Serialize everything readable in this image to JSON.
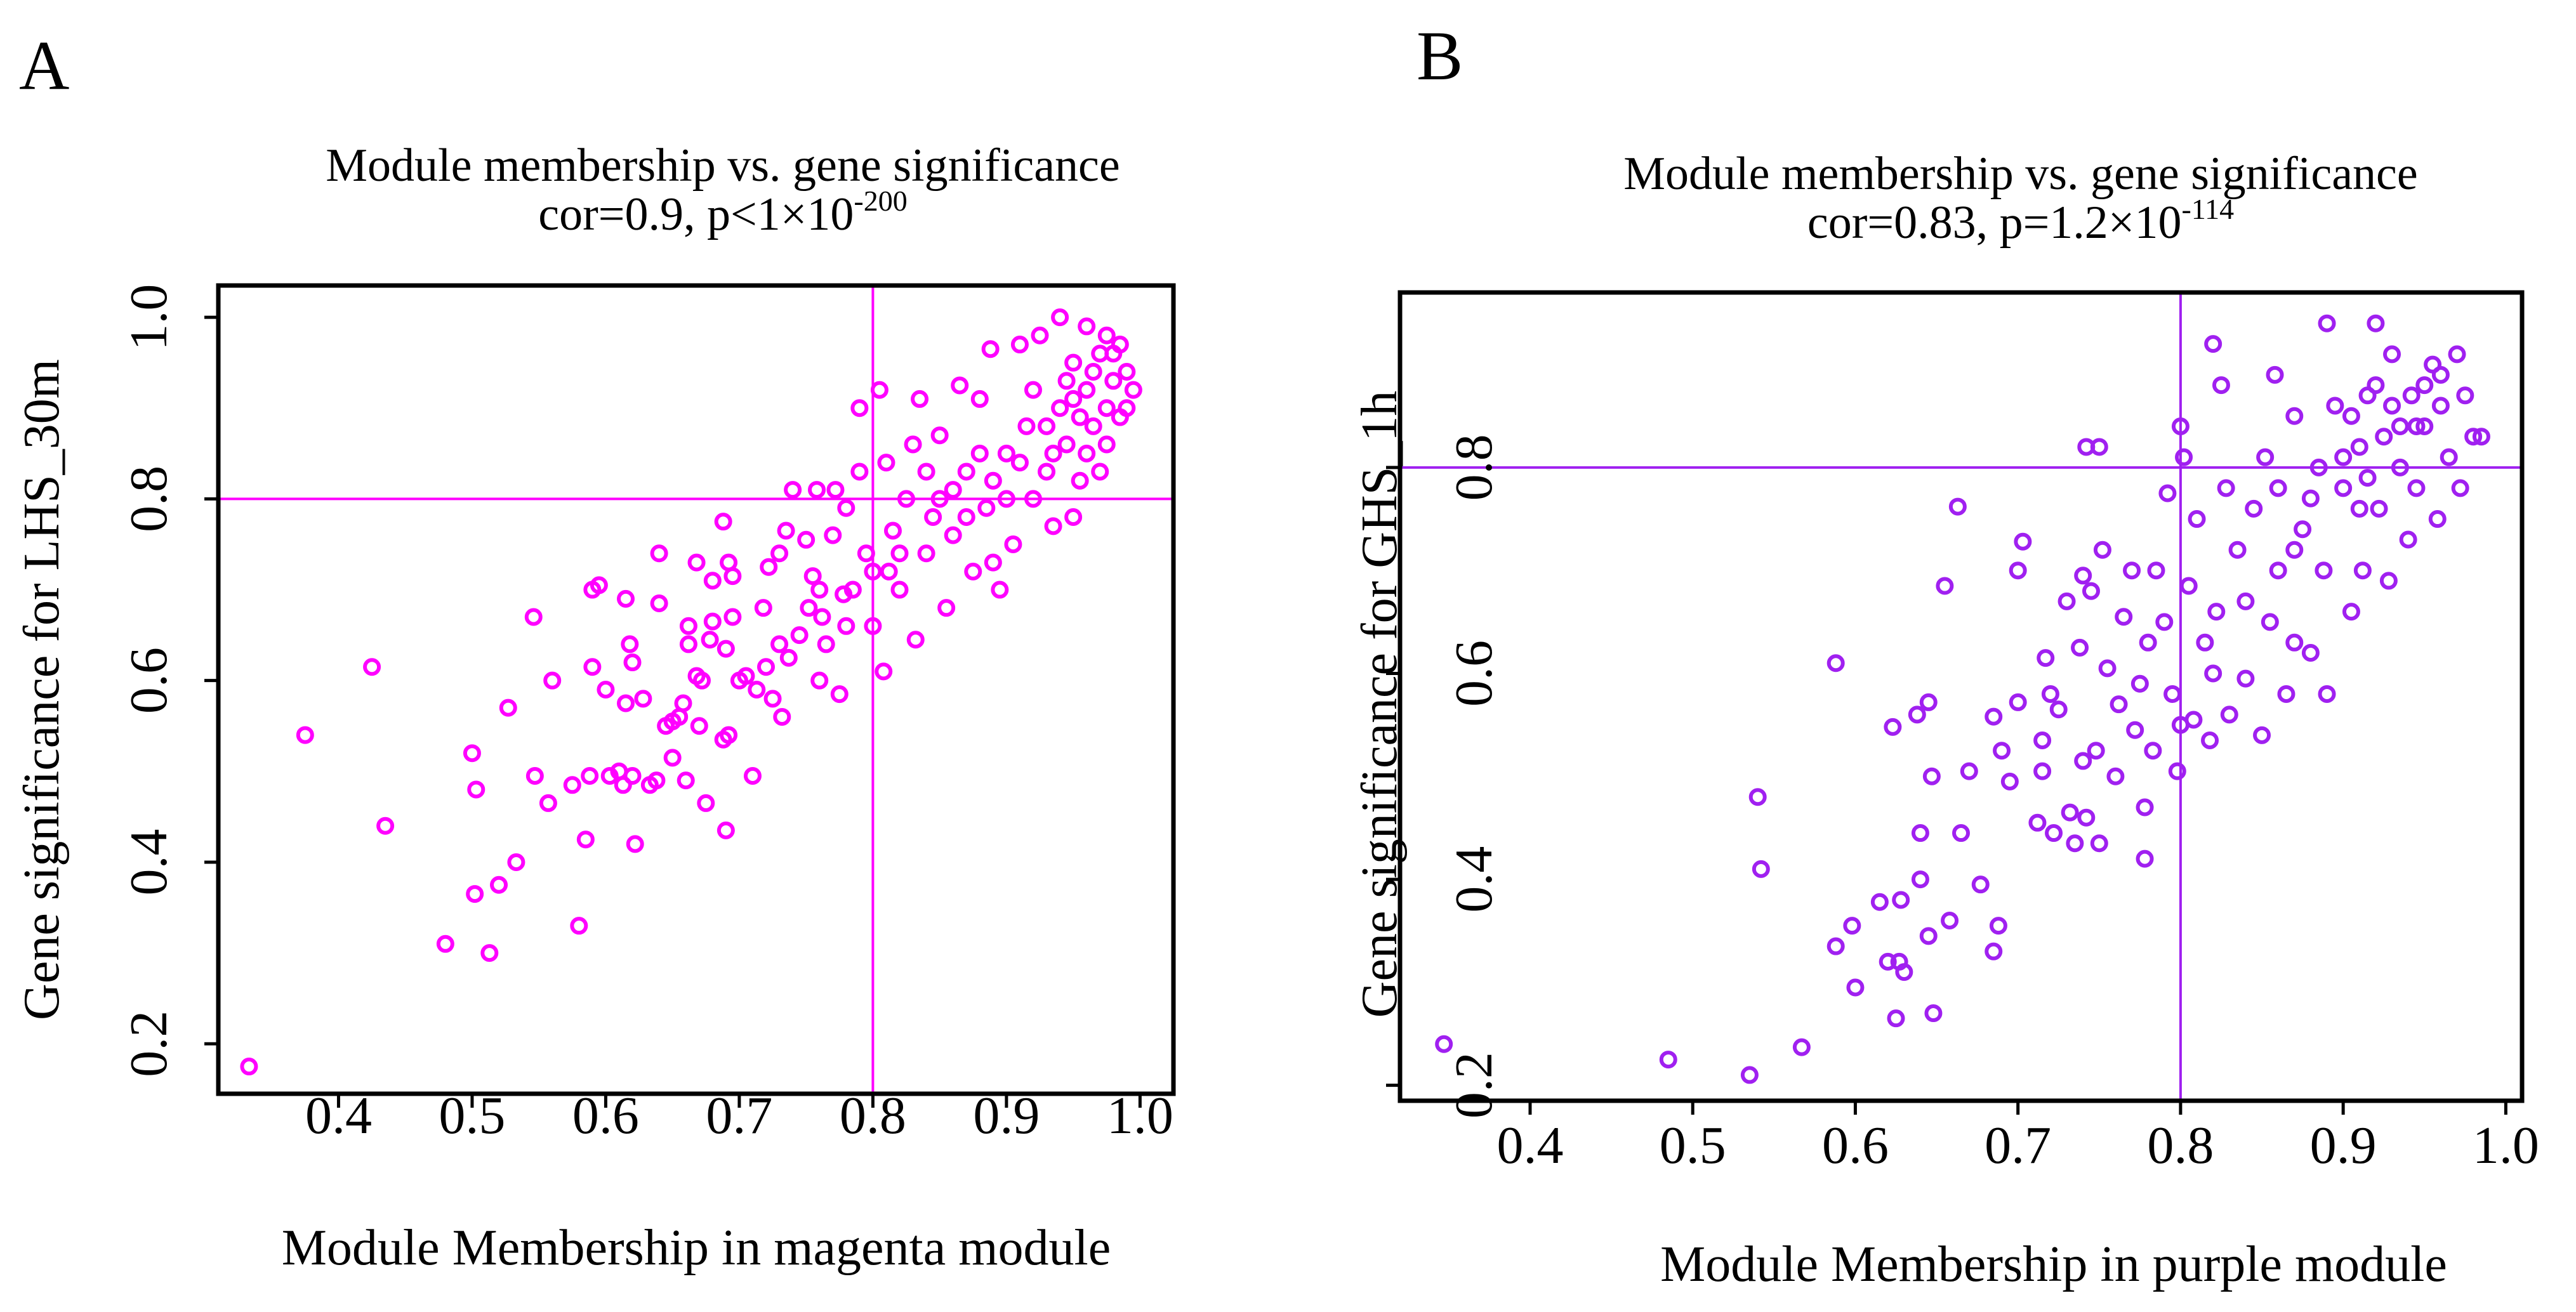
{
  "chart_data": [
    {
      "type": "scatter",
      "panel_label": "A",
      "title": "Module membership vs. gene significance",
      "subtitle": {
        "prefix": "cor=0.9, p<1×10",
        "exponent": "-200"
      },
      "xlabel": "Module Membership in magenta module",
      "ylabel": "Gene significance for LHS_30m",
      "xlim": [
        0.31,
        1.025
      ],
      "ylim": [
        0.145,
        1.035
      ],
      "xticks": [
        "0.4",
        "0.5",
        "0.6",
        "0.7",
        "0.8",
        "0.9",
        "1.0"
      ],
      "yticks": [
        "0.2",
        "0.4",
        "0.6",
        "0.8",
        "1.0"
      ],
      "reference_lines": {
        "x": 0.8,
        "y": 0.8
      },
      "marker": "open-circle",
      "color": "#FF00FF",
      "grid": false,
      "points": [
        [
          0.333,
          0.175
        ],
        [
          0.375,
          0.54
        ],
        [
          0.425,
          0.615
        ],
        [
          0.435,
          0.44
        ],
        [
          0.48,
          0.31
        ],
        [
          0.5,
          0.52
        ],
        [
          0.503,
          0.48
        ],
        [
          0.502,
          0.365
        ],
        [
          0.513,
          0.3
        ],
        [
          0.52,
          0.375
        ],
        [
          0.527,
          0.57
        ],
        [
          0.533,
          0.4
        ],
        [
          0.546,
          0.67
        ],
        [
          0.547,
          0.495
        ],
        [
          0.557,
          0.465
        ],
        [
          0.56,
          0.6
        ],
        [
          0.575,
          0.485
        ],
        [
          0.58,
          0.33
        ],
        [
          0.585,
          0.425
        ],
        [
          0.588,
          0.495
        ],
        [
          0.59,
          0.615
        ],
        [
          0.59,
          0.7
        ],
        [
          0.595,
          0.705
        ],
        [
          0.6,
          0.59
        ],
        [
          0.603,
          0.495
        ],
        [
          0.61,
          0.5
        ],
        [
          0.613,
          0.485
        ],
        [
          0.615,
          0.575
        ],
        [
          0.615,
          0.69
        ],
        [
          0.618,
          0.64
        ],
        [
          0.62,
          0.62
        ],
        [
          0.62,
          0.495
        ],
        [
          0.622,
          0.42
        ],
        [
          0.628,
          0.58
        ],
        [
          0.633,
          0.485
        ],
        [
          0.638,
          0.49
        ],
        [
          0.64,
          0.74
        ],
        [
          0.64,
          0.685
        ],
        [
          0.645,
          0.55
        ],
        [
          0.65,
          0.555
        ],
        [
          0.65,
          0.515
        ],
        [
          0.655,
          0.56
        ],
        [
          0.658,
          0.575
        ],
        [
          0.66,
          0.49
        ],
        [
          0.662,
          0.66
        ],
        [
          0.662,
          0.64
        ],
        [
          0.668,
          0.73
        ],
        [
          0.668,
          0.605
        ],
        [
          0.67,
          0.55
        ],
        [
          0.672,
          0.6
        ],
        [
          0.675,
          0.465
        ],
        [
          0.678,
          0.645
        ],
        [
          0.68,
          0.665
        ],
        [
          0.68,
          0.71
        ],
        [
          0.688,
          0.775
        ],
        [
          0.688,
          0.535
        ],
        [
          0.69,
          0.435
        ],
        [
          0.69,
          0.635
        ],
        [
          0.692,
          0.73
        ],
        [
          0.692,
          0.54
        ],
        [
          0.695,
          0.715
        ],
        [
          0.695,
          0.67
        ],
        [
          0.7,
          0.6
        ],
        [
          0.705,
          0.605
        ],
        [
          0.71,
          0.495
        ],
        [
          0.713,
          0.59
        ],
        [
          0.718,
          0.68
        ],
        [
          0.72,
          0.615
        ],
        [
          0.722,
          0.725
        ],
        [
          0.725,
          0.58
        ],
        [
          0.73,
          0.74
        ],
        [
          0.73,
          0.64
        ],
        [
          0.732,
          0.56
        ],
        [
          0.735,
          0.765
        ],
        [
          0.737,
          0.625
        ],
        [
          0.74,
          0.81
        ],
        [
          0.745,
          0.65
        ],
        [
          0.75,
          0.755
        ],
        [
          0.752,
          0.68
        ],
        [
          0.755,
          0.715
        ],
        [
          0.758,
          0.81
        ],
        [
          0.76,
          0.6
        ],
        [
          0.762,
          0.67
        ],
        [
          0.765,
          0.64
        ],
        [
          0.77,
          0.76
        ],
        [
          0.772,
          0.81
        ],
        [
          0.775,
          0.585
        ],
        [
          0.778,
          0.695
        ],
        [
          0.78,
          0.79
        ],
        [
          0.785,
          0.7
        ],
        [
          0.79,
          0.83
        ],
        [
          0.79,
          0.9
        ],
        [
          0.795,
          0.74
        ],
        [
          0.8,
          0.66
        ],
        [
          0.805,
          0.92
        ],
        [
          0.808,
          0.61
        ],
        [
          0.81,
          0.84
        ],
        [
          0.812,
          0.72
        ],
        [
          0.815,
          0.765
        ],
        [
          0.82,
          0.7
        ],
        [
          0.825,
          0.8
        ],
        [
          0.83,
          0.86
        ],
        [
          0.832,
          0.645
        ],
        [
          0.835,
          0.91
        ],
        [
          0.84,
          0.74
        ],
        [
          0.845,
          0.78
        ],
        [
          0.85,
          0.87
        ],
        [
          0.855,
          0.68
        ],
        [
          0.86,
          0.81
        ],
        [
          0.865,
          0.925
        ],
        [
          0.87,
          0.83
        ],
        [
          0.875,
          0.72
        ],
        [
          0.88,
          0.91
        ],
        [
          0.885,
          0.79
        ],
        [
          0.888,
          0.965
        ],
        [
          0.89,
          0.73
        ],
        [
          0.895,
          0.7
        ],
        [
          0.9,
          0.85
        ],
        [
          0.905,
          0.75
        ],
        [
          0.91,
          0.97
        ],
        [
          0.915,
          0.88
        ],
        [
          0.92,
          0.8
        ],
        [
          0.925,
          0.98
        ],
        [
          0.93,
          0.83
        ],
        [
          0.935,
          0.77
        ],
        [
          0.94,
          1.0
        ],
        [
          0.94,
          0.9
        ],
        [
          0.945,
          0.86
        ],
        [
          0.95,
          0.95
        ],
        [
          0.955,
          0.82
        ],
        [
          0.96,
          0.99
        ],
        [
          0.96,
          0.92
        ],
        [
          0.965,
          0.88
        ],
        [
          0.97,
          0.96
        ],
        [
          0.975,
          0.9
        ],
        [
          0.98,
          0.93
        ],
        [
          0.985,
          0.97
        ],
        [
          0.99,
          0.94
        ],
        [
          0.995,
          0.92
        ],
        [
          0.975,
          0.86
        ],
        [
          0.955,
          0.89
        ],
        [
          0.945,
          0.93
        ],
        [
          0.97,
          0.83
        ],
        [
          0.985,
          0.89
        ],
        [
          0.96,
          0.85
        ],
        [
          0.99,
          0.9
        ],
        [
          0.95,
          0.78
        ],
        [
          0.93,
          0.88
        ],
        [
          0.92,
          0.92
        ],
        [
          0.965,
          0.94
        ],
        [
          0.975,
          0.98
        ],
        [
          0.98,
          0.96
        ],
        [
          0.95,
          0.91
        ],
        [
          0.935,
          0.85
        ],
        [
          0.91,
          0.84
        ],
        [
          0.9,
          0.8
        ],
        [
          0.88,
          0.85
        ],
        [
          0.86,
          0.76
        ],
        [
          0.85,
          0.8
        ],
        [
          0.84,
          0.83
        ],
        [
          0.87,
          0.78
        ],
        [
          0.89,
          0.82
        ],
        [
          0.82,
          0.74
        ],
        [
          0.8,
          0.72
        ],
        [
          0.78,
          0.66
        ],
        [
          0.76,
          0.7
        ]
      ]
    },
    {
      "type": "scatter",
      "panel_label": "B",
      "title": "Module membership vs. gene significance",
      "subtitle": {
        "prefix": "cor=0.83, p=1.2×10",
        "exponent": "-114"
      },
      "xlabel": "Module Membership in purple module",
      "ylabel": "Gene significance for GHS_1h",
      "xlim": [
        0.32,
        1.01
      ],
      "ylim": [
        0.185,
        0.97
      ],
      "xticks": [
        "0.4",
        "0.5",
        "0.6",
        "0.7",
        "0.8",
        "0.9",
        "1.0"
      ],
      "yticks": [
        "0.2",
        "0.4",
        "0.6",
        "0.8"
      ],
      "reference_lines": {
        "x": 0.8,
        "y": 0.8
      },
      "marker": "open-circle",
      "color": "#A020F0",
      "grid": false,
      "points": [
        [
          0.347,
          0.24
        ],
        [
          0.485,
          0.225
        ],
        [
          0.535,
          0.21
        ],
        [
          0.54,
          0.48
        ],
        [
          0.542,
          0.41
        ],
        [
          0.567,
          0.237
        ],
        [
          0.588,
          0.61
        ],
        [
          0.588,
          0.335
        ],
        [
          0.598,
          0.355
        ],
        [
          0.6,
          0.295
        ],
        [
          0.615,
          0.378
        ],
        [
          0.62,
          0.32
        ],
        [
          0.623,
          0.548
        ],
        [
          0.625,
          0.265
        ],
        [
          0.627,
          0.32
        ],
        [
          0.628,
          0.38
        ],
        [
          0.63,
          0.31
        ],
        [
          0.638,
          0.56
        ],
        [
          0.64,
          0.445
        ],
        [
          0.64,
          0.4
        ],
        [
          0.645,
          0.572
        ],
        [
          0.645,
          0.345
        ],
        [
          0.647,
          0.5
        ],
        [
          0.648,
          0.27
        ],
        [
          0.655,
          0.685
        ],
        [
          0.658,
          0.36
        ],
        [
          0.663,
          0.762
        ],
        [
          0.665,
          0.445
        ],
        [
          0.67,
          0.505
        ],
        [
          0.677,
          0.395
        ],
        [
          0.685,
          0.558
        ],
        [
          0.685,
          0.33
        ],
        [
          0.688,
          0.355
        ],
        [
          0.69,
          0.525
        ],
        [
          0.695,
          0.495
        ],
        [
          0.7,
          0.7
        ],
        [
          0.7,
          0.572
        ],
        [
          0.703,
          0.728
        ],
        [
          0.712,
          0.455
        ],
        [
          0.715,
          0.535
        ],
        [
          0.715,
          0.505
        ],
        [
          0.717,
          0.615
        ],
        [
          0.72,
          0.58
        ],
        [
          0.722,
          0.445
        ],
        [
          0.725,
          0.565
        ],
        [
          0.73,
          0.67
        ],
        [
          0.732,
          0.465
        ],
        [
          0.735,
          0.435
        ],
        [
          0.738,
          0.625
        ],
        [
          0.74,
          0.695
        ],
        [
          0.74,
          0.515
        ],
        [
          0.742,
          0.82
        ],
        [
          0.742,
          0.46
        ],
        [
          0.745,
          0.68
        ],
        [
          0.748,
          0.525
        ],
        [
          0.75,
          0.82
        ],
        [
          0.75,
          0.435
        ],
        [
          0.752,
          0.72
        ],
        [
          0.755,
          0.605
        ],
        [
          0.76,
          0.5
        ],
        [
          0.762,
          0.57
        ],
        [
          0.765,
          0.655
        ],
        [
          0.77,
          0.7
        ],
        [
          0.772,
          0.545
        ],
        [
          0.775,
          0.59
        ],
        [
          0.778,
          0.47
        ],
        [
          0.778,
          0.42
        ],
        [
          0.78,
          0.63
        ],
        [
          0.783,
          0.525
        ],
        [
          0.785,
          0.7
        ],
        [
          0.79,
          0.65
        ],
        [
          0.792,
          0.775
        ],
        [
          0.795,
          0.58
        ],
        [
          0.798,
          0.505
        ],
        [
          0.8,
          0.84
        ],
        [
          0.802,
          0.81
        ],
        [
          0.805,
          0.685
        ],
        [
          0.808,
          0.555
        ],
        [
          0.81,
          0.75
        ],
        [
          0.815,
          0.63
        ],
        [
          0.818,
          0.535
        ],
        [
          0.82,
          0.92
        ],
        [
          0.822,
          0.66
        ],
        [
          0.825,
          0.88
        ],
        [
          0.828,
          0.78
        ],
        [
          0.83,
          0.56
        ],
        [
          0.835,
          0.72
        ],
        [
          0.84,
          0.595
        ],
        [
          0.845,
          0.76
        ],
        [
          0.85,
          0.54
        ],
        [
          0.852,
          0.81
        ],
        [
          0.855,
          0.65
        ],
        [
          0.858,
          0.89
        ],
        [
          0.86,
          0.7
        ],
        [
          0.865,
          0.58
        ],
        [
          0.87,
          0.63
        ],
        [
          0.87,
          0.85
        ],
        [
          0.875,
          0.74
        ],
        [
          0.88,
          0.62
        ],
        [
          0.885,
          0.8
        ],
        [
          0.888,
          0.7
        ],
        [
          0.89,
          0.94
        ],
        [
          0.89,
          0.58
        ],
        [
          0.895,
          0.86
        ],
        [
          0.9,
          0.78
        ],
        [
          0.905,
          0.66
        ],
        [
          0.91,
          0.82
        ],
        [
          0.912,
          0.7
        ],
        [
          0.915,
          0.87
        ],
        [
          0.92,
          0.94
        ],
        [
          0.922,
          0.76
        ],
        [
          0.925,
          0.83
        ],
        [
          0.928,
          0.69
        ],
        [
          0.93,
          0.91
        ],
        [
          0.935,
          0.8
        ],
        [
          0.94,
          0.73
        ],
        [
          0.942,
          0.87
        ],
        [
          0.945,
          0.78
        ],
        [
          0.95,
          0.84
        ],
        [
          0.955,
          0.9
        ],
        [
          0.958,
          0.75
        ],
        [
          0.96,
          0.86
        ],
        [
          0.965,
          0.81
        ],
        [
          0.97,
          0.91
        ],
        [
          0.972,
          0.78
        ],
        [
          0.975,
          0.87
        ],
        [
          0.98,
          0.83
        ],
        [
          0.985,
          0.83
        ],
        [
          0.905,
          0.85
        ],
        [
          0.93,
          0.86
        ],
        [
          0.915,
          0.79
        ],
        [
          0.945,
          0.84
        ],
        [
          0.88,
          0.77
        ],
        [
          0.86,
          0.78
        ],
        [
          0.9,
          0.81
        ],
        [
          0.92,
          0.88
        ],
        [
          0.95,
          0.88
        ],
        [
          0.96,
          0.89
        ],
        [
          0.935,
          0.84
        ],
        [
          0.91,
          0.76
        ],
        [
          0.87,
          0.72
        ],
        [
          0.84,
          0.67
        ],
        [
          0.82,
          0.6
        ],
        [
          0.8,
          0.55
        ]
      ]
    }
  ]
}
